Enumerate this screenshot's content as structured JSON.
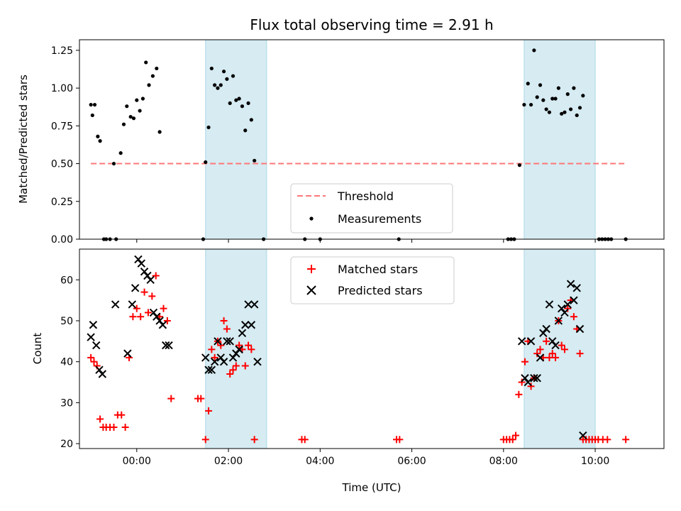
{
  "chart_data": [
    {
      "type": "scatter",
      "title": "Flux total observing time = 2.91 h",
      "ylabel": "Matched/Predicted stars",
      "xlabel": "",
      "xlim": [
        "2023-01-01T22:45",
        "2023-01-02T11:30"
      ],
      "ylim": [
        0,
        1.32
      ],
      "yticks": [
        "0.00",
        "0.25",
        "0.50",
        "0.75",
        "1.00",
        "1.25"
      ],
      "legend": {
        "placement": "lower-center",
        "entries": [
          "Threshold",
          "Measurements"
        ]
      },
      "shaded_spans": [
        [
          "01:30",
          "02:50"
        ],
        [
          "08:27",
          "10:00"
        ]
      ],
      "threshold": {
        "name": "Threshold",
        "y": 0.5,
        "x_from": "23:00",
        "x_to": "10:40",
        "color": "#ff7777"
      },
      "series": [
        {
          "name": "Measurements",
          "color": "#000000",
          "points": [
            [
              "23:00",
              0.89
            ],
            [
              "23:02",
              0.82
            ],
            [
              "23:05",
              0.89
            ],
            [
              "23:09",
              0.68
            ],
            [
              "23:12",
              0.65
            ],
            [
              "23:17",
              0.0
            ],
            [
              "23:20",
              0.0
            ],
            [
              "23:25",
              0.0
            ],
            [
              "23:30",
              0.5
            ],
            [
              "23:33",
              0.0
            ],
            [
              "23:39",
              0.57
            ],
            [
              "23:43",
              0.76
            ],
            [
              "23:47",
              0.88
            ],
            [
              "23:52",
              0.81
            ],
            [
              "23:56",
              0.8
            ],
            [
              "00:00",
              0.92
            ],
            [
              "00:04",
              0.85
            ],
            [
              "00:08",
              0.93
            ],
            [
              "00:12",
              1.17
            ],
            [
              "00:16",
              1.02
            ],
            [
              "00:21",
              1.08
            ],
            [
              "00:26",
              1.13
            ],
            [
              "00:30",
              0.71
            ],
            [
              "01:27",
              0.0
            ],
            [
              "01:30",
              0.51
            ],
            [
              "01:34",
              0.74
            ],
            [
              "01:38",
              1.13
            ],
            [
              "01:42",
              1.02
            ],
            [
              "01:46",
              1.0
            ],
            [
              "01:50",
              1.02
            ],
            [
              "01:54",
              1.11
            ],
            [
              "01:58",
              1.06
            ],
            [
              "02:02",
              0.9
            ],
            [
              "02:06",
              1.08
            ],
            [
              "02:10",
              0.92
            ],
            [
              "02:14",
              0.93
            ],
            [
              "02:18",
              0.88
            ],
            [
              "02:22",
              0.72
            ],
            [
              "02:26",
              0.9
            ],
            [
              "02:30",
              0.79
            ],
            [
              "02:34",
              0.52
            ],
            [
              "02:46",
              0.0
            ],
            [
              "03:40",
              0.0
            ],
            [
              "04:00",
              0.0
            ],
            [
              "05:43",
              0.0
            ],
            [
              "08:06",
              0.0
            ],
            [
              "08:10",
              0.0
            ],
            [
              "08:14",
              0.0
            ],
            [
              "08:21",
              0.49
            ],
            [
              "08:27",
              0.89
            ],
            [
              "08:32",
              1.03
            ],
            [
              "08:36",
              0.89
            ],
            [
              "08:40",
              1.25
            ],
            [
              "08:44",
              0.94
            ],
            [
              "08:48",
              1.02
            ],
            [
              "08:52",
              0.92
            ],
            [
              "08:56",
              0.86
            ],
            [
              "09:00",
              0.84
            ],
            [
              "09:04",
              0.93
            ],
            [
              "09:08",
              0.93
            ],
            [
              "09:12",
              1.0
            ],
            [
              "09:16",
              0.83
            ],
            [
              "09:20",
              0.84
            ],
            [
              "09:24",
              0.96
            ],
            [
              "09:28",
              0.86
            ],
            [
              "09:32",
              1.0
            ],
            [
              "09:36",
              0.82
            ],
            [
              "09:40",
              0.87
            ],
            [
              "09:44",
              0.95
            ],
            [
              "10:05",
              0.0
            ],
            [
              "10:09",
              0.0
            ],
            [
              "10:13",
              0.0
            ],
            [
              "10:17",
              0.0
            ],
            [
              "10:21",
              0.0
            ],
            [
              "10:40",
              0.0
            ]
          ]
        }
      ]
    },
    {
      "type": "scatter",
      "title": "",
      "xlabel": "Time (UTC)",
      "ylabel": "Count",
      "xlim": [
        "2023-01-01T22:45",
        "2023-01-02T11:30"
      ],
      "ylim": [
        18.8,
        67.5
      ],
      "xticks": [
        "00:00",
        "02:00",
        "04:00",
        "06:00",
        "08:00",
        "10:00"
      ],
      "yticks": [
        "20",
        "30",
        "40",
        "50",
        "60"
      ],
      "legend": {
        "placement": "top-center",
        "entries": [
          "Matched stars",
          "Predicted stars"
        ]
      },
      "shaded_spans": [
        [
          "01:30",
          "02:50"
        ],
        [
          "08:27",
          "10:00"
        ]
      ],
      "series": [
        {
          "name": "Matched stars",
          "color": "#ff0000",
          "marker": "+",
          "points": [
            [
              "23:00",
              41
            ],
            [
              "23:04",
              40
            ],
            [
              "23:08",
              39
            ],
            [
              "23:12",
              26
            ],
            [
              "23:16",
              24
            ],
            [
              "23:20",
              24
            ],
            [
              "23:25",
              24
            ],
            [
              "23:30",
              24
            ],
            [
              "23:35",
              27
            ],
            [
              "23:40",
              27
            ],
            [
              "23:45",
              24
            ],
            [
              "23:50",
              41
            ],
            [
              "23:55",
              51
            ],
            [
              "00:00",
              53
            ],
            [
              "00:05",
              51
            ],
            [
              "00:10",
              57
            ],
            [
              "00:15",
              52
            ],
            [
              "00:20",
              56
            ],
            [
              "00:25",
              61
            ],
            [
              "00:30",
              51
            ],
            [
              "00:35",
              53
            ],
            [
              "00:40",
              50
            ],
            [
              "00:45",
              31
            ],
            [
              "01:20",
              31
            ],
            [
              "01:24",
              31
            ],
            [
              "01:30",
              21
            ],
            [
              "01:34",
              28
            ],
            [
              "01:38",
              43
            ],
            [
              "01:42",
              41
            ],
            [
              "01:46",
              45
            ],
            [
              "01:50",
              44
            ],
            [
              "01:54",
              50
            ],
            [
              "01:58",
              48
            ],
            [
              "02:02",
              37
            ],
            [
              "02:06",
              38
            ],
            [
              "02:10",
              39
            ],
            [
              "02:14",
              44
            ],
            [
              "02:18",
              43
            ],
            [
              "02:22",
              39
            ],
            [
              "02:26",
              44
            ],
            [
              "02:30",
              43
            ],
            [
              "02:34",
              21
            ],
            [
              "03:36",
              21
            ],
            [
              "03:40",
              21
            ],
            [
              "05:40",
              21
            ],
            [
              "05:44",
              21
            ],
            [
              "08:00",
              21
            ],
            [
              "08:04",
              21
            ],
            [
              "08:08",
              21
            ],
            [
              "08:12",
              21
            ],
            [
              "08:16",
              22
            ],
            [
              "08:20",
              32
            ],
            [
              "08:24",
              35
            ],
            [
              "08:28",
              40
            ],
            [
              "08:32",
              45
            ],
            [
              "08:36",
              34
            ],
            [
              "08:40",
              36
            ],
            [
              "08:44",
              42
            ],
            [
              "08:48",
              43
            ],
            [
              "08:52",
              41
            ],
            [
              "08:56",
              45
            ],
            [
              "09:00",
              41
            ],
            [
              "09:04",
              42
            ],
            [
              "09:08",
              41
            ],
            [
              "09:12",
              50
            ],
            [
              "09:16",
              44
            ],
            [
              "09:20",
              43
            ],
            [
              "09:24",
              53
            ],
            [
              "09:28",
              55
            ],
            [
              "09:32",
              51
            ],
            [
              "09:36",
              48
            ],
            [
              "09:40",
              42
            ],
            [
              "09:44",
              21
            ],
            [
              "09:48",
              21
            ],
            [
              "09:52",
              21
            ],
            [
              "09:56",
              21
            ],
            [
              "10:00",
              21
            ],
            [
              "10:04",
              21
            ],
            [
              "10:10",
              21
            ],
            [
              "10:16",
              21
            ],
            [
              "10:40",
              21
            ]
          ]
        },
        {
          "name": "Predicted stars",
          "color": "#000000",
          "marker": "x",
          "points": [
            [
              "23:00",
              46
            ],
            [
              "23:03",
              49
            ],
            [
              "23:07",
              44
            ],
            [
              "23:11",
              38
            ],
            [
              "23:15",
              37
            ],
            [
              "23:32",
              54
            ],
            [
              "23:48",
              42
            ],
            [
              "23:54",
              54
            ],
            [
              "23:58",
              58
            ],
            [
              "00:02",
              65
            ],
            [
              "00:06",
              64
            ],
            [
              "00:10",
              62
            ],
            [
              "00:14",
              61
            ],
            [
              "00:18",
              60
            ],
            [
              "00:22",
              52
            ],
            [
              "00:26",
              51
            ],
            [
              "00:30",
              50
            ],
            [
              "00:34",
              49
            ],
            [
              "00:38",
              44
            ],
            [
              "00:42",
              44
            ],
            [
              "01:30",
              41
            ],
            [
              "01:34",
              38
            ],
            [
              "01:38",
              38
            ],
            [
              "01:42",
              40
            ],
            [
              "01:46",
              45
            ],
            [
              "01:50",
              41
            ],
            [
              "01:54",
              40
            ],
            [
              "01:58",
              45
            ],
            [
              "02:02",
              45
            ],
            [
              "02:06",
              41
            ],
            [
              "02:10",
              42
            ],
            [
              "02:14",
              43
            ],
            [
              "02:18",
              47
            ],
            [
              "02:22",
              49
            ],
            [
              "02:26",
              54
            ],
            [
              "02:30",
              49
            ],
            [
              "02:34",
              54
            ],
            [
              "02:38",
              40
            ],
            [
              "08:24",
              45
            ],
            [
              "08:28",
              36
            ],
            [
              "08:32",
              35
            ],
            [
              "08:36",
              45
            ],
            [
              "08:40",
              36
            ],
            [
              "08:44",
              36
            ],
            [
              "08:48",
              41
            ],
            [
              "08:52",
              47
            ],
            [
              "08:56",
              48
            ],
            [
              "09:00",
              54
            ],
            [
              "09:04",
              45
            ],
            [
              "09:08",
              44
            ],
            [
              "09:12",
              50
            ],
            [
              "09:16",
              53
            ],
            [
              "09:20",
              52
            ],
            [
              "09:24",
              54
            ],
            [
              "09:28",
              59
            ],
            [
              "09:32",
              55
            ],
            [
              "09:36",
              58
            ],
            [
              "09:40",
              48
            ],
            [
              "09:44",
              22
            ]
          ]
        }
      ]
    }
  ]
}
